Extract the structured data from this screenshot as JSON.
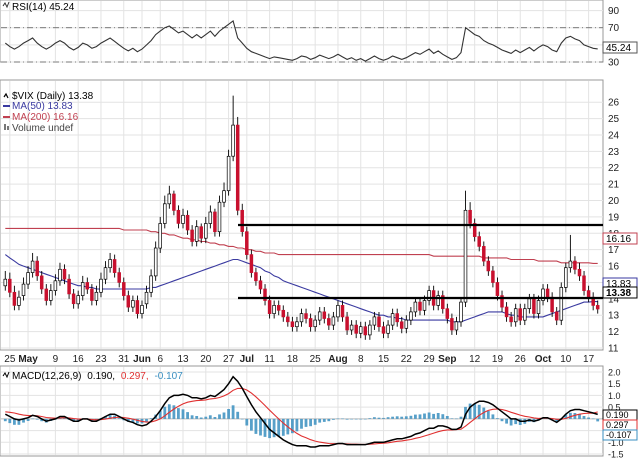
{
  "panels": {
    "rsi": {
      "legend": "RSI(14) 45.24",
      "current_value_label": "45.24",
      "current": 45.24,
      "ylim": [
        30,
        100
      ],
      "ticks": [
        "90",
        "70",
        "50",
        "30"
      ],
      "levels": [
        70,
        30
      ]
    },
    "price": {
      "legend": {
        "symbol": "$VIX (Daily) 13.38",
        "ma50": "MA(50) 13.83",
        "ma200": "MA(200) 16.16",
        "volume": "Volume undef"
      },
      "value_labels": {
        "ma200": "16.16",
        "ma50": "13.83",
        "last": "13.38"
      },
      "ylim": [
        11,
        26.5
      ],
      "ticks": [
        "26",
        "25",
        "24",
        "23",
        "22",
        "21",
        "20",
        "19",
        "18",
        "17",
        "16",
        "15",
        "14",
        "13",
        "12",
        "11"
      ]
    },
    "macd": {
      "legend_name": "MACD(12,26,9)",
      "legend_macd": "0.190,",
      "legend_signal": "0.297,",
      "legend_hist": "-0.107",
      "value_labels": {
        "macd": "0.190",
        "signal": "0.297",
        "hist": "-0.107"
      },
      "ylim": [
        -1.5,
        2.0
      ],
      "ticks": [
        "2.0",
        "1.5",
        "1.0",
        "0.5",
        "0",
        "-0.5",
        "-1.0",
        "-1.5"
      ]
    }
  },
  "x_axis": {
    "labels": [
      {
        "text": "25",
        "bold": false,
        "i": 1
      },
      {
        "text": "May",
        "bold": true,
        "i": 5
      },
      {
        "text": "9",
        "bold": false,
        "i": 11
      },
      {
        "text": "16",
        "bold": false,
        "i": 16
      },
      {
        "text": "23",
        "bold": false,
        "i": 21
      },
      {
        "text": "31",
        "bold": false,
        "i": 26
      },
      {
        "text": "Jun",
        "bold": true,
        "i": 30
      },
      {
        "text": "6",
        "bold": false,
        "i": 34
      },
      {
        "text": "13",
        "bold": false,
        "i": 39
      },
      {
        "text": "20",
        "bold": false,
        "i": 44
      },
      {
        "text": "27",
        "bold": false,
        "i": 49
      },
      {
        "text": "Jul",
        "bold": true,
        "i": 53
      },
      {
        "text": "11",
        "bold": false,
        "i": 58
      },
      {
        "text": "18",
        "bold": false,
        "i": 63
      },
      {
        "text": "25",
        "bold": false,
        "i": 68
      },
      {
        "text": "Aug",
        "bold": true,
        "i": 73
      },
      {
        "text": "8",
        "bold": false,
        "i": 78
      },
      {
        "text": "15",
        "bold": false,
        "i": 83
      },
      {
        "text": "22",
        "bold": false,
        "i": 88
      },
      {
        "text": "29",
        "bold": false,
        "i": 93
      },
      {
        "text": "Sep",
        "bold": true,
        "i": 97
      },
      {
        "text": "12",
        "bold": false,
        "i": 103
      },
      {
        "text": "19",
        "bold": false,
        "i": 108
      },
      {
        "text": "26",
        "bold": false,
        "i": 113
      },
      {
        "text": "Oct",
        "bold": true,
        "i": 118
      },
      {
        "text": "10",
        "bold": false,
        "i": 123
      },
      {
        "text": "17",
        "bold": false,
        "i": 128
      }
    ]
  },
  "chart_data": {
    "type": "candlestick",
    "symbol": "$VIX (Daily)",
    "last": 13.38,
    "colors": {
      "up": "#ffffff",
      "down": "#c8102e",
      "outline": "#000000",
      "ma50": "#3a3aa0",
      "ma200": "#c04050",
      "rsi": "#333333",
      "macd": "#000000",
      "signal": "#e03030",
      "hist": "#3a8fc0"
    },
    "close": [
      15.2,
      14.4,
      13.6,
      14.1,
      14.9,
      15.6,
      16.3,
      15.4,
      14.6,
      13.9,
      14.5,
      15.1,
      15.8,
      15.2,
      14.3,
      13.7,
      14.2,
      15.0,
      14.6,
      13.9,
      14.4,
      15.2,
      15.9,
      16.4,
      15.6,
      15.0,
      14.2,
      13.5,
      13.9,
      13.1,
      13.6,
      14.4,
      15.4,
      17.1,
      18.6,
      19.8,
      20.4,
      19.4,
      18.6,
      19.1,
      18.2,
      17.5,
      18.4,
      17.7,
      18.6,
      19.3,
      18.1,
      19.9,
      20.6,
      22.7,
      24.6,
      19.4,
      18.1,
      16.7,
      15.6,
      15.1,
      14.6,
      13.9,
      13.1,
      13.6,
      13.3,
      12.9,
      12.6,
      12.3,
      12.6,
      13.1,
      12.8,
      12.3,
      12.7,
      13.2,
      12.8,
      12.4,
      12.9,
      13.6,
      12.9,
      12.1,
      12.4,
      11.9,
      12.3,
      11.8,
      12.4,
      12.9,
      12.3,
      11.9,
      12.4,
      13.1,
      12.6,
      12.2,
      12.7,
      13.2,
      13.8,
      13.3,
      13.9,
      14.5,
      13.6,
      14.2,
      13.4,
      12.8,
      12.1,
      12.6,
      13.8,
      19.4,
      18.6,
      17.8,
      17.2,
      16.3,
      15.7,
      15.0,
      14.2,
      13.5,
      12.9,
      12.6,
      13.4,
      12.7,
      13.4,
      14.0,
      13.1,
      13.9,
      14.6,
      14.1,
      13.2,
      12.7,
      14.7,
      15.9,
      16.3,
      15.8,
      15.4,
      14.5,
      14.1,
      13.6,
      13.38
    ],
    "open": [
      14.8,
      15.2,
      14.4,
      13.6,
      14.2,
      14.9,
      15.6,
      16.3,
      15.4,
      14.6,
      13.9,
      14.5,
      15.1,
      15.8,
      15.2,
      14.3,
      13.7,
      14.2,
      15.0,
      14.6,
      13.9,
      14.4,
      15.2,
      15.9,
      16.4,
      15.6,
      15.0,
      14.2,
      13.5,
      13.9,
      13.1,
      13.7,
      14.4,
      15.4,
      17.1,
      18.6,
      19.8,
      20.4,
      19.4,
      18.6,
      19.1,
      18.2,
      17.5,
      18.4,
      17.7,
      18.6,
      19.3,
      18.1,
      19.9,
      20.6,
      22.7,
      24.6,
      19.4,
      18.1,
      16.7,
      15.6,
      15.1,
      14.6,
      13.9,
      13.1,
      13.6,
      13.3,
      12.9,
      12.6,
      12.3,
      12.6,
      13.1,
      12.8,
      12.3,
      12.7,
      13.2,
      12.8,
      12.4,
      12.9,
      13.6,
      12.9,
      12.1,
      12.4,
      11.9,
      12.3,
      11.8,
      12.4,
      12.9,
      12.3,
      11.9,
      12.4,
      13.1,
      12.6,
      12.2,
      12.7,
      13.2,
      13.8,
      13.3,
      13.9,
      14.5,
      13.6,
      14.2,
      13.4,
      12.8,
      12.1,
      12.6,
      13.8,
      19.4,
      18.6,
      17.8,
      17.2,
      16.3,
      15.7,
      15.0,
      14.2,
      13.5,
      12.9,
      12.6,
      13.4,
      12.7,
      13.4,
      14.0,
      13.1,
      13.9,
      14.6,
      14.1,
      13.2,
      12.7,
      14.7,
      15.9,
      16.3,
      15.8,
      15.4,
      14.5,
      14.1,
      13.6
    ],
    "high": [
      15.7,
      15.6,
      14.8,
      14.5,
      15.3,
      16.0,
      16.8,
      16.6,
      15.7,
      14.9,
      14.9,
      15.5,
      16.2,
      16.1,
      15.5,
      14.6,
      14.5,
      15.4,
      15.3,
      14.9,
      14.8,
      15.6,
      16.3,
      16.8,
      16.7,
      15.9,
      15.3,
      14.5,
      14.2,
      14.2,
      13.9,
      14.8,
      15.8,
      17.5,
      19.0,
      20.3,
      20.9,
      20.6,
      19.7,
      19.5,
      19.4,
      18.5,
      18.8,
      18.6,
      19.0,
      19.7,
      19.5,
      20.3,
      21.1,
      23.1,
      26.4,
      25.1,
      19.8,
      18.4,
      17.0,
      15.9,
      15.4,
      14.9,
      14.2,
      13.9,
      13.9,
      13.6,
      13.2,
      12.9,
      12.9,
      13.4,
      13.4,
      13.1,
      13.0,
      13.5,
      13.5,
      13.1,
      13.2,
      13.9,
      13.9,
      13.2,
      12.7,
      12.7,
      12.6,
      12.6,
      12.7,
      13.2,
      13.2,
      12.6,
      12.7,
      13.4,
      13.4,
      12.9,
      13.0,
      13.5,
      14.1,
      14.1,
      14.2,
      14.8,
      14.8,
      14.5,
      14.5,
      13.7,
      13.1,
      12.9,
      14.1,
      20.6,
      19.9,
      18.9,
      18.1,
      17.5,
      16.6,
      16.0,
      15.3,
      14.5,
      13.8,
      13.2,
      13.7,
      13.7,
      13.7,
      14.3,
      14.3,
      14.2,
      14.9,
      14.9,
      14.4,
      13.5,
      15.0,
      16.2,
      17.9,
      16.6,
      16.2,
      15.7,
      14.8,
      14.4,
      13.9
    ],
    "low": [
      14.5,
      14.1,
      13.3,
      13.3,
      13.9,
      14.6,
      15.3,
      15.1,
      14.3,
      13.6,
      13.6,
      14.2,
      14.8,
      14.9,
      14.0,
      13.4,
      13.4,
      13.9,
      14.3,
      13.6,
      13.6,
      14.1,
      14.9,
      15.6,
      15.3,
      14.7,
      13.9,
      13.2,
      13.2,
      12.8,
      12.8,
      13.4,
      14.1,
      15.1,
      16.8,
      18.3,
      19.5,
      19.1,
      18.3,
      18.3,
      17.9,
      17.2,
      17.2,
      17.4,
      17.4,
      18.3,
      17.8,
      17.8,
      19.6,
      20.3,
      22.4,
      19.1,
      17.8,
      16.4,
      15.3,
      14.8,
      14.3,
      13.6,
      12.8,
      12.8,
      13.0,
      12.6,
      12.3,
      12.0,
      12.0,
      12.3,
      12.5,
      12.0,
      12.0,
      12.4,
      12.5,
      12.1,
      12.1,
      12.6,
      12.6,
      11.8,
      11.8,
      11.6,
      11.6,
      11.5,
      11.5,
      12.1,
      12.0,
      11.6,
      11.6,
      12.1,
      12.3,
      11.9,
      11.9,
      12.4,
      12.9,
      13.0,
      13.0,
      13.6,
      13.3,
      13.3,
      13.1,
      12.5,
      11.8,
      11.8,
      12.3,
      13.5,
      18.3,
      17.5,
      16.9,
      16.0,
      15.4,
      14.7,
      13.9,
      13.2,
      12.6,
      12.3,
      12.3,
      12.4,
      12.4,
      13.1,
      12.8,
      12.8,
      13.6,
      13.8,
      12.9,
      12.4,
      12.4,
      14.4,
      15.6,
      15.5,
      15.1,
      14.2,
      13.8,
      13.3,
      13.1
    ],
    "ma50": [
      16.7,
      16.5,
      16.3,
      16.1,
      16.0,
      15.9,
      15.8,
      15.7,
      15.6,
      15.5,
      15.4,
      15.3,
      15.2,
      15.1,
      15.0,
      14.9,
      14.8,
      14.8,
      14.7,
      14.7,
      14.6,
      14.6,
      14.6,
      14.6,
      14.6,
      14.6,
      14.6,
      14.6,
      14.6,
      14.6,
      14.6,
      14.6,
      14.7,
      14.7,
      14.8,
      14.9,
      15.0,
      15.1,
      15.2,
      15.3,
      15.4,
      15.5,
      15.6,
      15.7,
      15.8,
      15.9,
      16.0,
      16.1,
      16.2,
      16.3,
      16.4,
      16.4,
      16.3,
      16.2,
      16.1,
      16.0,
      15.9,
      15.7,
      15.6,
      15.4,
      15.3,
      15.1,
      15.0,
      14.9,
      14.8,
      14.7,
      14.6,
      14.5,
      14.4,
      14.3,
      14.2,
      14.1,
      14.0,
      13.9,
      13.8,
      13.7,
      13.6,
      13.5,
      13.4,
      13.3,
      13.2,
      13.1,
      13.0,
      13.0,
      12.9,
      12.9,
      12.8,
      12.8,
      12.7,
      12.7,
      12.7,
      12.7,
      12.7,
      12.7,
      12.7,
      12.7,
      12.7,
      12.7,
      12.6,
      12.6,
      12.6,
      12.7,
      12.8,
      12.9,
      13.0,
      13.1,
      13.2,
      13.2,
      13.2,
      13.2,
      13.1,
      13.0,
      13.0,
      12.9,
      12.9,
      12.9,
      12.9,
      12.9,
      12.9,
      13.0,
      13.1,
      13.2,
      13.3,
      13.4,
      13.5,
      13.6,
      13.7,
      13.8,
      13.8,
      13.83,
      13.83
    ],
    "ma200": [
      18.3,
      18.3,
      18.3,
      18.3,
      18.3,
      18.3,
      18.3,
      18.3,
      18.3,
      18.3,
      18.3,
      18.3,
      18.3,
      18.3,
      18.3,
      18.3,
      18.3,
      18.3,
      18.3,
      18.3,
      18.3,
      18.3,
      18.3,
      18.3,
      18.3,
      18.3,
      18.2,
      18.2,
      18.2,
      18.2,
      18.2,
      18.2,
      18.1,
      18.1,
      18.0,
      18.0,
      17.9,
      17.9,
      17.8,
      17.7,
      17.7,
      17.6,
      17.6,
      17.5,
      17.5,
      17.4,
      17.4,
      17.3,
      17.3,
      17.2,
      17.2,
      17.1,
      17.1,
      17.0,
      17.0,
      16.9,
      16.9,
      16.8,
      16.8,
      16.8,
      16.7,
      16.7,
      16.7,
      16.7,
      16.7,
      16.7,
      16.7,
      16.7,
      16.7,
      16.7,
      16.7,
      16.7,
      16.7,
      16.7,
      16.7,
      16.7,
      16.7,
      16.7,
      16.7,
      16.7,
      16.7,
      16.7,
      16.7,
      16.7,
      16.7,
      16.7,
      16.7,
      16.7,
      16.7,
      16.7,
      16.7,
      16.7,
      16.7,
      16.7,
      16.6,
      16.6,
      16.6,
      16.6,
      16.6,
      16.6,
      16.6,
      16.6,
      16.6,
      16.6,
      16.6,
      16.5,
      16.5,
      16.5,
      16.5,
      16.5,
      16.5,
      16.4,
      16.4,
      16.4,
      16.4,
      16.4,
      16.4,
      16.3,
      16.3,
      16.3,
      16.3,
      16.3,
      16.2,
      16.2,
      16.2,
      16.2,
      16.2,
      16.2,
      16.2,
      16.16,
      16.16
    ],
    "rsi": [
      52,
      48,
      45,
      48,
      52,
      55,
      58,
      52,
      48,
      45,
      48,
      52,
      55,
      52,
      47,
      44,
      47,
      52,
      50,
      46,
      48,
      52,
      55,
      58,
      54,
      50,
      46,
      43,
      46,
      42,
      45,
      50,
      55,
      62,
      66,
      70,
      72,
      68,
      64,
      66,
      62,
      58,
      62,
      58,
      62,
      66,
      60,
      66,
      70,
      74,
      78,
      58,
      52,
      46,
      42,
      40,
      38,
      36,
      34,
      36,
      35,
      34,
      33,
      32,
      34,
      37,
      36,
      33,
      35,
      38,
      36,
      34,
      36,
      39,
      36,
      33,
      35,
      32,
      34,
      31,
      34,
      37,
      34,
      32,
      34,
      37,
      35,
      33,
      35,
      38,
      41,
      39,
      42,
      45,
      40,
      43,
      39,
      36,
      33,
      35,
      41,
      70,
      66,
      62,
      60,
      55,
      52,
      50,
      47,
      44,
      42,
      40,
      44,
      41,
      44,
      47,
      43,
      47,
      50,
      48,
      44,
      42,
      52,
      58,
      60,
      57,
      55,
      50,
      48,
      46,
      45.24
    ],
    "rsi_levels": [
      70,
      30
    ],
    "macd": [
      0.2,
      0.1,
      0.0,
      -0.05,
      0.0,
      0.05,
      0.15,
      0.1,
      0.0,
      -0.1,
      -0.05,
      0.0,
      0.1,
      0.1,
      0.0,
      -0.1,
      -0.1,
      0.0,
      0.0,
      -0.1,
      -0.1,
      0.0,
      0.1,
      0.2,
      0.2,
      0.1,
      0.0,
      -0.1,
      -0.15,
      -0.25,
      -0.3,
      -0.25,
      -0.1,
      0.1,
      0.35,
      0.65,
      0.9,
      1.0,
      1.0,
      1.05,
      1.0,
      0.9,
      0.9,
      0.85,
      0.9,
      1.0,
      0.95,
      1.1,
      1.25,
      1.5,
      1.8,
      1.6,
      1.3,
      0.95,
      0.6,
      0.3,
      0.05,
      -0.2,
      -0.45,
      -0.6,
      -0.75,
      -0.9,
      -1.0,
      -1.1,
      -1.15,
      -1.15,
      -1.15,
      -1.2,
      -1.2,
      -1.15,
      -1.15,
      -1.15,
      -1.1,
      -1.05,
      -1.05,
      -1.1,
      -1.1,
      -1.1,
      -1.1,
      -1.1,
      -1.05,
      -1.0,
      -1.0,
      -1.0,
      -0.95,
      -0.9,
      -0.85,
      -0.85,
      -0.8,
      -0.75,
      -0.65,
      -0.6,
      -0.5,
      -0.4,
      -0.4,
      -0.3,
      -0.3,
      -0.35,
      -0.45,
      -0.45,
      -0.35,
      0.2,
      0.5,
      0.65,
      0.75,
      0.75,
      0.7,
      0.6,
      0.45,
      0.3,
      0.15,
      0.0,
      0.0,
      -0.1,
      -0.1,
      -0.05,
      -0.1,
      -0.05,
      0.05,
      0.05,
      -0.05,
      -0.15,
      0.0,
      0.2,
      0.35,
      0.4,
      0.4,
      0.35,
      0.3,
      0.25,
      0.19
    ],
    "signal": [
      0.3,
      0.28,
      0.25,
      0.2,
      0.16,
      0.14,
      0.14,
      0.13,
      0.1,
      0.06,
      0.04,
      0.03,
      0.04,
      0.05,
      0.04,
      0.01,
      -0.01,
      -0.01,
      -0.01,
      -0.03,
      -0.04,
      -0.03,
      -0.01,
      0.03,
      0.06,
      0.07,
      0.06,
      0.03,
      -0.01,
      -0.06,
      -0.11,
      -0.14,
      -0.13,
      -0.08,
      0.0,
      0.13,
      0.28,
      0.42,
      0.54,
      0.64,
      0.71,
      0.75,
      0.78,
      0.79,
      0.81,
      0.85,
      0.87,
      0.91,
      0.98,
      1.08,
      1.22,
      1.3,
      1.3,
      1.23,
      1.1,
      0.94,
      0.76,
      0.57,
      0.37,
      0.18,
      0.0,
      -0.18,
      -0.34,
      -0.49,
      -0.62,
      -0.73,
      -0.81,
      -0.89,
      -0.95,
      -0.99,
      -1.02,
      -1.05,
      -1.06,
      -1.06,
      -1.06,
      -1.07,
      -1.08,
      -1.08,
      -1.09,
      -1.09,
      -1.08,
      -1.07,
      -1.05,
      -1.04,
      -1.02,
      -0.99,
      -0.96,
      -0.94,
      -0.91,
      -0.88,
      -0.83,
      -0.79,
      -0.73,
      -0.67,
      -0.61,
      -0.55,
      -0.5,
      -0.47,
      -0.47,
      -0.46,
      -0.44,
      -0.31,
      -0.15,
      -0.0,
      0.15,
      0.27,
      0.36,
      0.41,
      0.42,
      0.4,
      0.35,
      0.28,
      0.22,
      0.16,
      0.11,
      0.08,
      0.04,
      0.02,
      0.03,
      0.03,
      0.01,
      -0.02,
      -0.02,
      0.02,
      0.09,
      0.15,
      0.2,
      0.23,
      0.24,
      0.24,
      0.297
    ],
    "hist_note": "MACD minus signal"
  }
}
